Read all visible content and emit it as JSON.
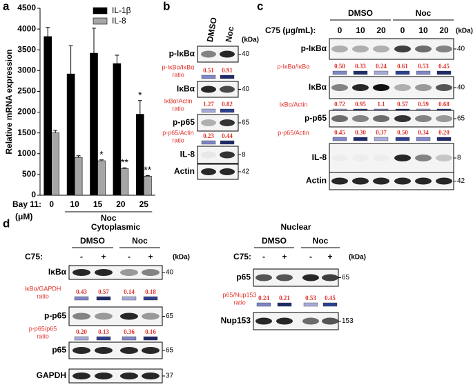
{
  "chart_data": {
    "type": "bar",
    "panel_label": "a",
    "ylabel": "Relative mRNA expression",
    "xlabel": "Bay 11:",
    "xlabel_unit": "(μM)",
    "group_label": "Noc",
    "categories": [
      "0",
      "10",
      "15",
      "20",
      "25"
    ],
    "series": [
      {
        "name": "IL-1β",
        "color": "#000000",
        "values": [
          3820,
          2920,
          3420,
          3170,
          1950
        ],
        "errors": [
          220,
          680,
          600,
          200,
          330
        ],
        "significance": [
          null,
          null,
          null,
          null,
          "*"
        ]
      },
      {
        "name": "IL-8",
        "color": "#a6a6a6",
        "values": [
          1500,
          910,
          830,
          640,
          460
        ],
        "errors": [
          60,
          40,
          20,
          20,
          15
        ],
        "significance": [
          null,
          null,
          "*",
          "**",
          "**"
        ]
      }
    ],
    "ylim": [
      0,
      4500
    ],
    "yticks": [
      0,
      500,
      1000,
      1500,
      2000,
      2500,
      3000,
      3500,
      4000,
      4500
    ],
    "legend": "upper right"
  },
  "panel_b": {
    "label": "b",
    "lanes": [
      "DMSO",
      "Noc"
    ],
    "unit": "(kDa)",
    "rows": [
      {
        "name": "p-IκBα",
        "kda": "40"
      },
      {
        "name": "p-IκBα/IκBα",
        "unit": "ratio",
        "values": [
          "0.51",
          "0.91"
        ]
      },
      {
        "name": "IκBα",
        "kda": "40"
      },
      {
        "name": "IκBα/Actin",
        "unit": "ratio",
        "values": [
          "1.27",
          "0.82"
        ]
      },
      {
        "name": "p-p65",
        "kda": "65"
      },
      {
        "name": "p-p65/Actin",
        "unit": "ratio",
        "values": [
          "0.23",
          "0.44"
        ]
      },
      {
        "name": "IL-8",
        "kda": "8"
      },
      {
        "name": "Actin",
        "kda": "42"
      }
    ]
  },
  "panel_c": {
    "label": "c",
    "groups": [
      "DMSO",
      "Noc"
    ],
    "treatment": "C75 (μg/mL):",
    "lanes": [
      "0",
      "10",
      "20",
      "0",
      "10",
      "20"
    ],
    "unit": "(kDa)",
    "rows": [
      {
        "name": "p-IκBα",
        "kda": "40"
      },
      {
        "name": "p-IκBα/IκBα",
        "values": [
          "0.50",
          "0.33",
          "0.24",
          "0.61",
          "0.53",
          "0.45"
        ]
      },
      {
        "name": "IκBα",
        "kda": "40"
      },
      {
        "name": "IκBα/Actin",
        "values": [
          "0.72",
          "0.95",
          "1.1",
          "0.57",
          "0.59",
          "0.68"
        ]
      },
      {
        "name": "p-p65",
        "kda": "65"
      },
      {
        "name": "p-p65/Actin",
        "values": [
          "0.45",
          "0.30",
          "0.37",
          "0.50",
          "0.34",
          "0.20"
        ]
      },
      {
        "name": "IL-8",
        "kda": "8"
      },
      {
        "name": "Actin",
        "kda": "42"
      }
    ]
  },
  "panel_d": {
    "label": "d",
    "cytoplasmic": {
      "title": "Cytoplasmic",
      "groups": [
        "DMSO",
        "Noc"
      ],
      "treatment": "C75:",
      "lanes": [
        "-",
        "+",
        "-",
        "+"
      ],
      "unit": "(kDa)",
      "rows": [
        {
          "name": "IκBα",
          "kda": "40"
        },
        {
          "name": "IκBα/GAPDH",
          "unit": "ratio",
          "values": [
            "0.43",
            "0.57",
            "0.14",
            "0.18"
          ]
        },
        {
          "name": "p-p65",
          "kda": "65"
        },
        {
          "name": "p-p65/p65",
          "unit": "ratio",
          "values": [
            "0.20",
            "0.13",
            "0.36",
            "0.16"
          ]
        },
        {
          "name": "p65",
          "kda": "65"
        },
        {
          "name": "GAPDH",
          "kda": "37"
        }
      ]
    },
    "nuclear": {
      "title": "Nuclear",
      "groups": [
        "DMSO",
        "Noc"
      ],
      "treatment": "C75:",
      "lanes": [
        "-",
        "+",
        "-",
        "+"
      ],
      "unit": "(kDa)",
      "rows": [
        {
          "name": "p65",
          "kda": "65"
        },
        {
          "name": "p65/Nup153",
          "unit": "ratio",
          "values": [
            "0.24",
            "0.21",
            "0.53",
            "0.45"
          ]
        },
        {
          "name": "Nup153",
          "kda": "153"
        }
      ]
    }
  }
}
